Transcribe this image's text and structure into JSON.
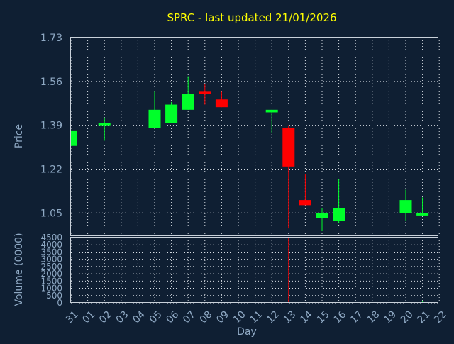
{
  "chart_data": {
    "type": "candlestick",
    "title": "SPRC - last updated 21/01/2026",
    "xlabel": "Day",
    "price_panel": {
      "ylabel": "Price",
      "ylim": [
        0.96,
        1.73
      ],
      "yticks": [
        "1.73",
        "1.56",
        "1.39",
        "1.22",
        "1.05"
      ],
      "ytick_values": [
        1.73,
        1.56,
        1.39,
        1.22,
        1.05
      ]
    },
    "volume_panel": {
      "ylabel": "Volume (0000)",
      "ylim": [
        0,
        4500
      ],
      "yticks": [
        "4500",
        "4000",
        "3500",
        "3000",
        "2500",
        "2000",
        "1500",
        "1000",
        "500",
        "0"
      ],
      "ytick_values": [
        4500,
        4000,
        3500,
        3000,
        2500,
        2000,
        1500,
        1000,
        500,
        0
      ]
    },
    "x_labels": [
      "31",
      "01",
      "02",
      "03",
      "04",
      "05",
      "06",
      "07",
      "08",
      "09",
      "10",
      "11",
      "12",
      "13",
      "14",
      "15",
      "16",
      "17",
      "18",
      "19",
      "20",
      "21",
      "22"
    ],
    "grid": true,
    "colors": {
      "up": "#00ff2a",
      "down": "#ff0000",
      "title": "#ffff00",
      "axis_text": "#8fa9c4",
      "background": "#0f1f33"
    },
    "candles": [
      {
        "day": "31",
        "open": 1.31,
        "close": 1.37,
        "high": 1.37,
        "low": 1.31,
        "volume": 0
      },
      {
        "day": "02",
        "open": 1.39,
        "close": 1.4,
        "high": 1.42,
        "low": 1.33,
        "volume": 0
      },
      {
        "day": "05",
        "open": 1.38,
        "close": 1.45,
        "high": 1.52,
        "low": 1.38,
        "volume": 0
      },
      {
        "day": "06",
        "open": 1.4,
        "close": 1.47,
        "high": 1.48,
        "low": 1.4,
        "volume": 0
      },
      {
        "day": "07",
        "open": 1.45,
        "close": 1.51,
        "high": 1.58,
        "low": 1.45,
        "volume": 0
      },
      {
        "day": "08",
        "open": 1.52,
        "close": 1.51,
        "high": 1.55,
        "low": 1.47,
        "volume": 0
      },
      {
        "day": "09",
        "open": 1.49,
        "close": 1.46,
        "high": 1.52,
        "low": 1.46,
        "volume": 0
      },
      {
        "day": "12",
        "open": 1.44,
        "close": 1.45,
        "high": 1.45,
        "low": 1.36,
        "volume": 0
      },
      {
        "day": "13",
        "open": 1.38,
        "close": 1.23,
        "high": 1.39,
        "low": 0.99,
        "volume": 4500
      },
      {
        "day": "14",
        "open": 1.1,
        "close": 1.08,
        "high": 1.2,
        "low": 1.08,
        "volume": 0
      },
      {
        "day": "15",
        "open": 1.03,
        "close": 1.05,
        "high": 1.07,
        "low": 0.98,
        "volume": 0
      },
      {
        "day": "16",
        "open": 1.02,
        "close": 1.07,
        "high": 1.18,
        "low": 1.01,
        "volume": 0
      },
      {
        "day": "20",
        "open": 1.05,
        "close": 1.1,
        "high": 1.14,
        "low": 1.02,
        "volume": 0
      },
      {
        "day": "21",
        "open": 1.04,
        "close": 1.05,
        "high": 1.11,
        "low": 1.04,
        "volume": 150
      }
    ]
  }
}
